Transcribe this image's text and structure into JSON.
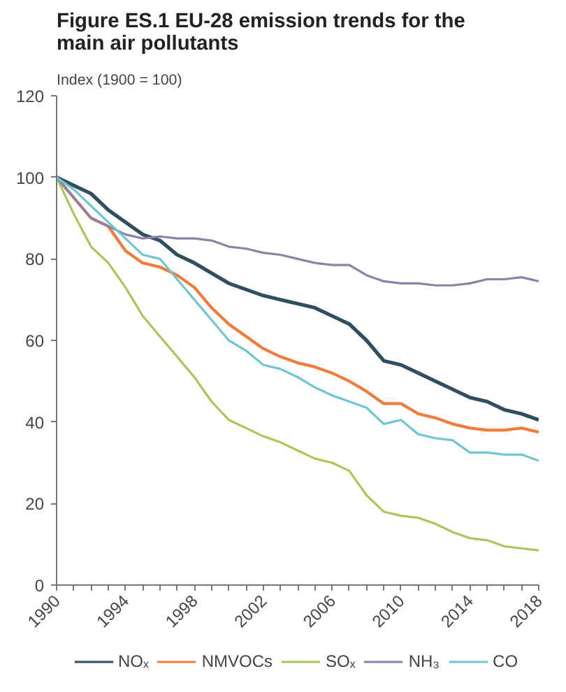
{
  "chart_data": {
    "type": "line",
    "title": "Figure ES.1 EU-28 emission trends for the main air pollutants",
    "ylabel": "Index (1900 = 100)",
    "x": [
      1990,
      1991,
      1992,
      1993,
      1994,
      1995,
      1996,
      1997,
      1998,
      1999,
      2000,
      2001,
      2002,
      2003,
      2004,
      2005,
      2006,
      2007,
      2008,
      2009,
      2010,
      2011,
      2012,
      2013,
      2014,
      2015,
      2016,
      2017,
      2018
    ],
    "series": [
      {
        "name": "NOₓ",
        "color": "#2f4f5f",
        "values": [
          100,
          98,
          96,
          92,
          89,
          86,
          84.5,
          81,
          79,
          76.5,
          74,
          72.5,
          71,
          70,
          69,
          68,
          66,
          64,
          60,
          55,
          54,
          52,
          50,
          48,
          46,
          45,
          43,
          42,
          40.5
        ]
      },
      {
        "name": "NMVOCs",
        "color": "#f07c3c",
        "values": [
          100,
          95,
          90,
          88,
          82,
          79,
          78,
          76,
          73,
          68,
          64,
          61,
          58,
          56,
          54.5,
          53.5,
          52,
          50,
          47.5,
          44.5,
          44.5,
          42,
          41,
          39.5,
          38.5,
          38,
          38,
          38.5,
          37.5
        ]
      },
      {
        "name": "SOₓ",
        "color": "#a9c65a",
        "values": [
          100,
          91,
          83,
          79,
          73,
          66,
          61,
          56,
          51,
          45,
          40.5,
          38.5,
          36.5,
          35,
          33,
          31,
          30,
          28,
          22,
          18,
          17,
          16.5,
          15,
          13,
          11.5,
          11,
          9.5,
          9,
          8.5
        ]
      },
      {
        "name": "NH₃",
        "color": "#8c82a8",
        "values": [
          100,
          95,
          90,
          88,
          86,
          85,
          85.5,
          85,
          85,
          84.5,
          83,
          82.5,
          81.5,
          81,
          80,
          79,
          78.5,
          78.5,
          76,
          74.5,
          74,
          74,
          73.5,
          73.5,
          74,
          75,
          75,
          75.5,
          74.5
        ]
      },
      {
        "name": "CO",
        "color": "#6fc6d0",
        "values": [
          100,
          97,
          93,
          89,
          85,
          81,
          80,
          75,
          70,
          65,
          60,
          57.5,
          54,
          53,
          51,
          48.5,
          46.5,
          45,
          43.5,
          39.5,
          40.5,
          37,
          36,
          35.5,
          32.5,
          32.5,
          32,
          32,
          30.5
        ]
      }
    ],
    "xlim": [
      1990,
      2018
    ],
    "xticks": [
      1990,
      {
        "value": 1991,
        "label": null
      },
      {
        "value": 1992,
        "label": null
      },
      {
        "value": 1993,
        "label": null
      },
      1994,
      {
        "value": 1995,
        "label": null
      },
      {
        "value": 1996,
        "label": null
      },
      {
        "value": 1997,
        "label": null
      },
      1998,
      {
        "value": 1999,
        "label": null
      },
      {
        "value": 2000,
        "label": null
      },
      {
        "value": 2001,
        "label": null
      },
      2002,
      {
        "value": 2003,
        "label": null
      },
      {
        "value": 2004,
        "label": null
      },
      {
        "value": 2005,
        "label": null
      },
      2006,
      {
        "value": 2007,
        "label": null
      },
      {
        "value": 2008,
        "label": null
      },
      {
        "value": 2009,
        "label": null
      },
      2010,
      {
        "value": 2011,
        "label": null
      },
      {
        "value": 2012,
        "label": null
      },
      {
        "value": 2013,
        "label": null
      },
      2014,
      {
        "value": 2015,
        "label": null
      },
      {
        "value": 2016,
        "label": null
      },
      {
        "value": 2017,
        "label": null
      },
      2018
    ],
    "ylim": [
      0,
      120
    ],
    "yticks": [
      0,
      20,
      40,
      60,
      80,
      100,
      120
    ],
    "grid": false,
    "legend": "bottom",
    "marker": "none",
    "line_style": "solid"
  }
}
